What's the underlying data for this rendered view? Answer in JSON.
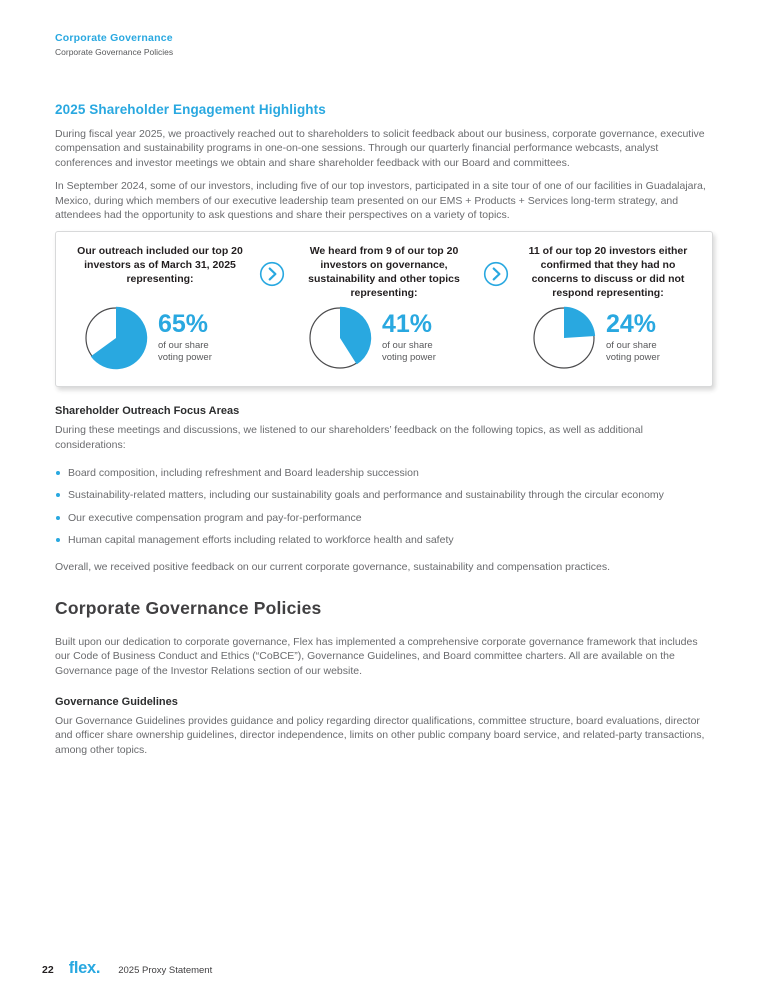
{
  "colors": {
    "accent": "#29a8e0",
    "heading_dark": "#414042",
    "card_text": "#231f20",
    "body_text": "#6a6b6e"
  },
  "header": {
    "section": "Corporate Governance",
    "subsection": "Corporate Governance Policies"
  },
  "engagement": {
    "heading": "2025 Shareholder Engagement Highlights",
    "para1": "During fiscal year 2025, we proactively reached out to shareholders to solicit feedback about our business, corporate governance, executive compensation and sustainability programs in one-on-one sessions. Through our quarterly financial performance webcasts, analyst conferences and investor meetings we obtain and share shareholder feedback with our Board and committees.",
    "para2": "In September 2024, some of our investors, including five of our top investors, participated in a site tour of one of our facilities in Guadalajara, Mexico, during which members of our executive leadership team presented on our EMS + Products + Services long-term strategy, and attendees had the opportunity to ask questions and share their perspectives on a variety of topics.",
    "cards": [
      {
        "title": "Our outreach included our top 20 investors as of March 31, 2025 representing:",
        "percent": "65%",
        "pie_percent": 65,
        "caption": "of our share voting power"
      },
      {
        "title": "We heard from 9 of our top 20 investors on governance, sustainability and other topics representing:",
        "percent": "41%",
        "pie_percent": 41,
        "caption": "of our share voting power"
      },
      {
        "title": "11 of our top 20 investors either confirmed that they had no concerns to discuss or did not respond representing:",
        "percent": "24%",
        "pie_percent": 24,
        "caption": "of our share voting power"
      }
    ]
  },
  "chart_data": [
    {
      "type": "pie",
      "title": "Top 20 investors outreach",
      "values": [
        65,
        35
      ],
      "labels": [
        "of our share voting power",
        "remainder"
      ]
    },
    {
      "type": "pie",
      "title": "Heard from 9 of top 20 investors",
      "values": [
        41,
        59
      ],
      "labels": [
        "of our share voting power",
        "remainder"
      ]
    },
    {
      "type": "pie",
      "title": "11 of top 20 no concerns or no response",
      "values": [
        24,
        76
      ],
      "labels": [
        "of our share voting power",
        "remainder"
      ]
    }
  ],
  "focus": {
    "heading": "Shareholder Outreach Focus Areas",
    "intro": "During these meetings and discussions, we listened to our shareholders’ feedback on the following topics, as well as additional considerations:",
    "bullets": [
      "Board composition, including refreshment and Board leadership succession",
      "Sustainability-related matters, including our sustainability goals and performance and sustainability through the circular economy",
      "Our executive compensation program and pay-for-performance",
      "Human capital management efforts including related to workforce health and safety"
    ],
    "outro": "Overall, we received positive feedback on our current corporate governance, sustainability and compensation practices."
  },
  "policies": {
    "heading": "Corporate Governance Policies",
    "para": "Built upon our dedication to corporate governance, Flex has implemented a comprehensive corporate governance framework that includes our Code of Business Conduct and Ethics (“CoBCE”), Governance Guidelines, and Board committee charters. All are available on the Governance page of the Investor Relations section of our website.",
    "guidelines_heading": "Governance Guidelines",
    "guidelines_para": "Our Governance Guidelines provides guidance and policy regarding director qualifications, committee structure, board evaluations, director and officer share ownership guidelines, director independence, limits on other public company board service, and related-party transactions, among other topics."
  },
  "footer": {
    "page_number": "22",
    "logo_text": "flex.",
    "doc_title": "2025 Proxy Statement"
  }
}
